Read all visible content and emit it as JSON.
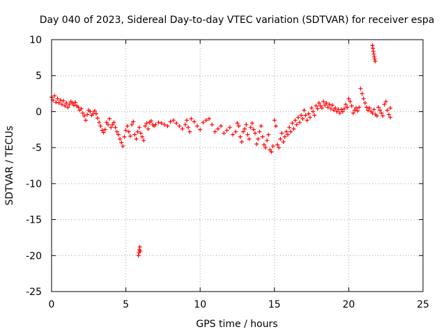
{
  "chart_data": {
    "type": "scatter",
    "title": "Day 040 of 2023, Sidereal Day-to-day VTEC variation (SDTVAR) for receiver espa",
    "xlabel": "GPS time / hours",
    "ylabel": "SDTVAR / TECUs",
    "xlim": [
      0,
      25
    ],
    "ylim": [
      -25,
      10
    ],
    "xticks": [
      0,
      5,
      10,
      15,
      20,
      25
    ],
    "yticks": [
      -25,
      -20,
      -15,
      -10,
      -5,
      0,
      5,
      10
    ],
    "xtick_labels": [
      "0",
      "5",
      "10",
      "15",
      "20",
      "25"
    ],
    "ytick_labels": [
      "-25",
      "-20",
      "-15",
      "-10",
      "-5",
      "0",
      "5",
      "10"
    ],
    "grid": true,
    "marker": "plus",
    "color": "#ff0000",
    "series": [
      {
        "name": "SDTVAR",
        "points": [
          [
            0.0,
            2.0
          ],
          [
            0.1,
            1.6
          ],
          [
            0.2,
            2.2
          ],
          [
            0.3,
            1.3
          ],
          [
            0.4,
            1.8
          ],
          [
            0.5,
            1.2
          ],
          [
            0.6,
            1.6
          ],
          [
            0.7,
            1.0
          ],
          [
            0.8,
            1.5
          ],
          [
            0.9,
            0.8
          ],
          [
            1.0,
            1.2
          ],
          [
            1.1,
            0.6
          ],
          [
            1.2,
            1.0
          ],
          [
            1.3,
            1.4
          ],
          [
            1.4,
            1.2
          ],
          [
            1.5,
            0.9
          ],
          [
            1.6,
            1.3
          ],
          [
            1.7,
            0.8
          ],
          [
            1.8,
            0.6
          ],
          [
            1.9,
            0.2
          ],
          [
            2.0,
            0.4
          ],
          [
            2.1,
            -0.2
          ],
          [
            2.2,
            -0.6
          ],
          [
            2.3,
            -1.2
          ],
          [
            2.4,
            -0.4
          ],
          [
            2.5,
            0.2
          ],
          [
            2.6,
            0.0
          ],
          [
            2.7,
            -0.5
          ],
          [
            2.8,
            -0.3
          ],
          [
            2.9,
            0.1
          ],
          [
            3.0,
            -0.3
          ],
          [
            3.1,
            -0.9
          ],
          [
            3.2,
            -1.5
          ],
          [
            3.3,
            -2.0
          ],
          [
            3.4,
            -2.6
          ],
          [
            3.5,
            -2.9
          ],
          [
            3.6,
            -2.5
          ],
          [
            3.7,
            -1.5
          ],
          [
            3.8,
            -1.8
          ],
          [
            3.9,
            -1.0
          ],
          [
            4.0,
            -2.2
          ],
          [
            4.1,
            -1.8
          ],
          [
            4.2,
            -1.5
          ],
          [
            4.3,
            -2.2
          ],
          [
            4.4,
            -2.8
          ],
          [
            4.5,
            -3.2
          ],
          [
            4.6,
            -3.8
          ],
          [
            4.7,
            -4.3
          ],
          [
            4.8,
            -4.8
          ],
          [
            4.9,
            -3.5
          ],
          [
            5.0,
            -2.6
          ],
          [
            5.1,
            -2.0
          ],
          [
            5.2,
            -2.8
          ],
          [
            5.3,
            -3.4
          ],
          [
            5.4,
            -1.8
          ],
          [
            5.5,
            -1.4
          ],
          [
            5.6,
            -3.2
          ],
          [
            5.7,
            -3.8
          ],
          [
            5.8,
            -2.8
          ],
          [
            5.9,
            -2.2
          ],
          [
            6.0,
            -3.0
          ],
          [
            6.1,
            -3.5
          ],
          [
            6.2,
            -4.0
          ],
          [
            6.3,
            -2.0
          ],
          [
            6.4,
            -1.6
          ],
          [
            6.5,
            -2.4
          ],
          [
            6.6,
            -1.5
          ],
          [
            6.7,
            -1.3
          ],
          [
            6.8,
            -1.8
          ],
          [
            6.9,
            -2.0
          ],
          [
            7.0,
            -1.8
          ],
          [
            7.2,
            -1.5
          ],
          [
            7.4,
            -1.6
          ],
          [
            7.6,
            -1.8
          ],
          [
            7.8,
            -2.0
          ],
          [
            8.0,
            -1.4
          ],
          [
            8.2,
            -1.2
          ],
          [
            8.4,
            -1.6
          ],
          [
            8.6,
            -2.0
          ],
          [
            8.8,
            -2.4
          ],
          [
            9.0,
            -1.8
          ],
          [
            9.1,
            -1.2
          ],
          [
            9.2,
            -2.2
          ],
          [
            9.3,
            -2.8
          ],
          [
            9.4,
            -1.0
          ],
          [
            9.6,
            -1.4
          ],
          [
            9.8,
            -2.0
          ],
          [
            10.0,
            -2.5
          ],
          [
            10.2,
            -1.5
          ],
          [
            10.4,
            -1.2
          ],
          [
            10.6,
            -1.0
          ],
          [
            10.8,
            -1.8
          ],
          [
            11.0,
            -2.8
          ],
          [
            11.2,
            -2.4
          ],
          [
            11.4,
            -2.0
          ],
          [
            11.6,
            -3.0
          ],
          [
            11.8,
            -2.6
          ],
          [
            12.0,
            -2.2
          ],
          [
            12.2,
            -3.2
          ],
          [
            12.4,
            -2.8
          ],
          [
            12.5,
            -1.6
          ],
          [
            12.6,
            -2.0
          ],
          [
            12.7,
            -3.5
          ],
          [
            12.8,
            -4.2
          ],
          [
            12.9,
            -2.8
          ],
          [
            13.0,
            -2.4
          ],
          [
            13.1,
            -1.8
          ],
          [
            13.2,
            -3.2
          ],
          [
            13.3,
            -3.8
          ],
          [
            13.4,
            -2.2
          ],
          [
            13.5,
            -1.6
          ],
          [
            13.6,
            -2.5
          ],
          [
            13.7,
            -3.0
          ],
          [
            13.8,
            -4.5
          ],
          [
            13.9,
            -3.8
          ],
          [
            14.0,
            -2.8
          ],
          [
            14.1,
            -2.0
          ],
          [
            14.2,
            -3.5
          ],
          [
            14.3,
            -4.6
          ],
          [
            14.4,
            -5.0
          ],
          [
            14.5,
            -4.0
          ],
          [
            14.6,
            -3.2
          ],
          [
            14.7,
            -5.3
          ],
          [
            14.8,
            -5.6
          ],
          [
            14.9,
            -4.8
          ],
          [
            15.0,
            -1.2
          ],
          [
            15.1,
            -2.0
          ],
          [
            15.2,
            -4.6
          ],
          [
            15.3,
            -5.0
          ],
          [
            15.4,
            -3.8
          ],
          [
            15.5,
            -3.0
          ],
          [
            15.6,
            -4.2
          ],
          [
            15.7,
            -3.5
          ],
          [
            15.8,
            -2.8
          ],
          [
            15.9,
            -3.2
          ],
          [
            16.0,
            -2.2
          ],
          [
            16.1,
            -2.8
          ],
          [
            16.2,
            -1.6
          ],
          [
            16.3,
            -2.4
          ],
          [
            16.4,
            -1.2
          ],
          [
            16.5,
            -1.8
          ],
          [
            16.6,
            -0.8
          ],
          [
            16.7,
            -1.5
          ],
          [
            16.8,
            -0.5
          ],
          [
            16.9,
            -1.0
          ],
          [
            17.0,
            0.2
          ],
          [
            17.1,
            -0.5
          ],
          [
            17.2,
            -1.2
          ],
          [
            17.3,
            -0.3
          ],
          [
            17.4,
            -0.8
          ],
          [
            17.5,
            0.5
          ],
          [
            17.6,
            0.0
          ],
          [
            17.7,
            -0.5
          ],
          [
            17.8,
            0.8
          ],
          [
            17.9,
            0.4
          ],
          [
            18.0,
            1.2
          ],
          [
            18.1,
            0.8
          ],
          [
            18.2,
            0.5
          ],
          [
            18.3,
            1.4
          ],
          [
            18.4,
            0.9
          ],
          [
            18.5,
            1.2
          ],
          [
            18.6,
            0.6
          ],
          [
            18.7,
            1.0
          ],
          [
            18.8,
            0.4
          ],
          [
            18.9,
            0.9
          ],
          [
            19.0,
            0.2
          ],
          [
            19.1,
            0.5
          ],
          [
            19.2,
            0.0
          ],
          [
            19.3,
            0.3
          ],
          [
            19.4,
            -0.2
          ],
          [
            19.5,
            0.3
          ],
          [
            19.6,
            0.0
          ],
          [
            19.7,
            0.4
          ],
          [
            19.8,
            1.0
          ],
          [
            19.9,
            0.6
          ],
          [
            20.0,
            1.8
          ],
          [
            20.1,
            1.4
          ],
          [
            20.2,
            0.8
          ],
          [
            20.3,
            -0.2
          ],
          [
            20.4,
            0.2
          ],
          [
            20.5,
            0.5
          ],
          [
            20.6,
            0.1
          ],
          [
            20.7,
            0.6
          ],
          [
            20.8,
            3.2
          ],
          [
            20.9,
            2.5
          ],
          [
            21.0,
            1.8
          ],
          [
            21.1,
            1.2
          ],
          [
            21.2,
            0.6
          ],
          [
            21.3,
            0.2
          ],
          [
            21.4,
            0.5
          ],
          [
            21.5,
            0.0
          ],
          [
            21.6,
            -0.2
          ],
          [
            21.7,
            0.3
          ],
          [
            21.8,
            -0.4
          ],
          [
            21.9,
            -0.6
          ],
          [
            22.0,
            0.6
          ],
          [
            22.1,
            0.2
          ],
          [
            22.2,
            -0.2
          ],
          [
            22.3,
            -0.6
          ],
          [
            22.4,
            1.0
          ],
          [
            22.5,
            1.4
          ],
          [
            22.6,
            0.2
          ],
          [
            22.7,
            -0.4
          ],
          [
            22.8,
            0.5
          ],
          [
            22.8,
            -0.8
          ],
          [
            5.85,
            -20.0
          ],
          [
            5.88,
            -19.6
          ],
          [
            5.91,
            -19.2
          ],
          [
            5.94,
            -18.8
          ],
          [
            5.97,
            -19.4
          ],
          [
            21.6,
            9.2
          ],
          [
            21.63,
            8.8
          ],
          [
            21.66,
            8.4
          ],
          [
            21.69,
            8.0
          ],
          [
            21.72,
            7.6
          ],
          [
            21.75,
            7.3
          ],
          [
            21.78,
            7.0
          ]
        ]
      }
    ]
  },
  "colors": {
    "marker": "#ff0000",
    "grid": "#a0a0a0",
    "axis": "#000000"
  }
}
